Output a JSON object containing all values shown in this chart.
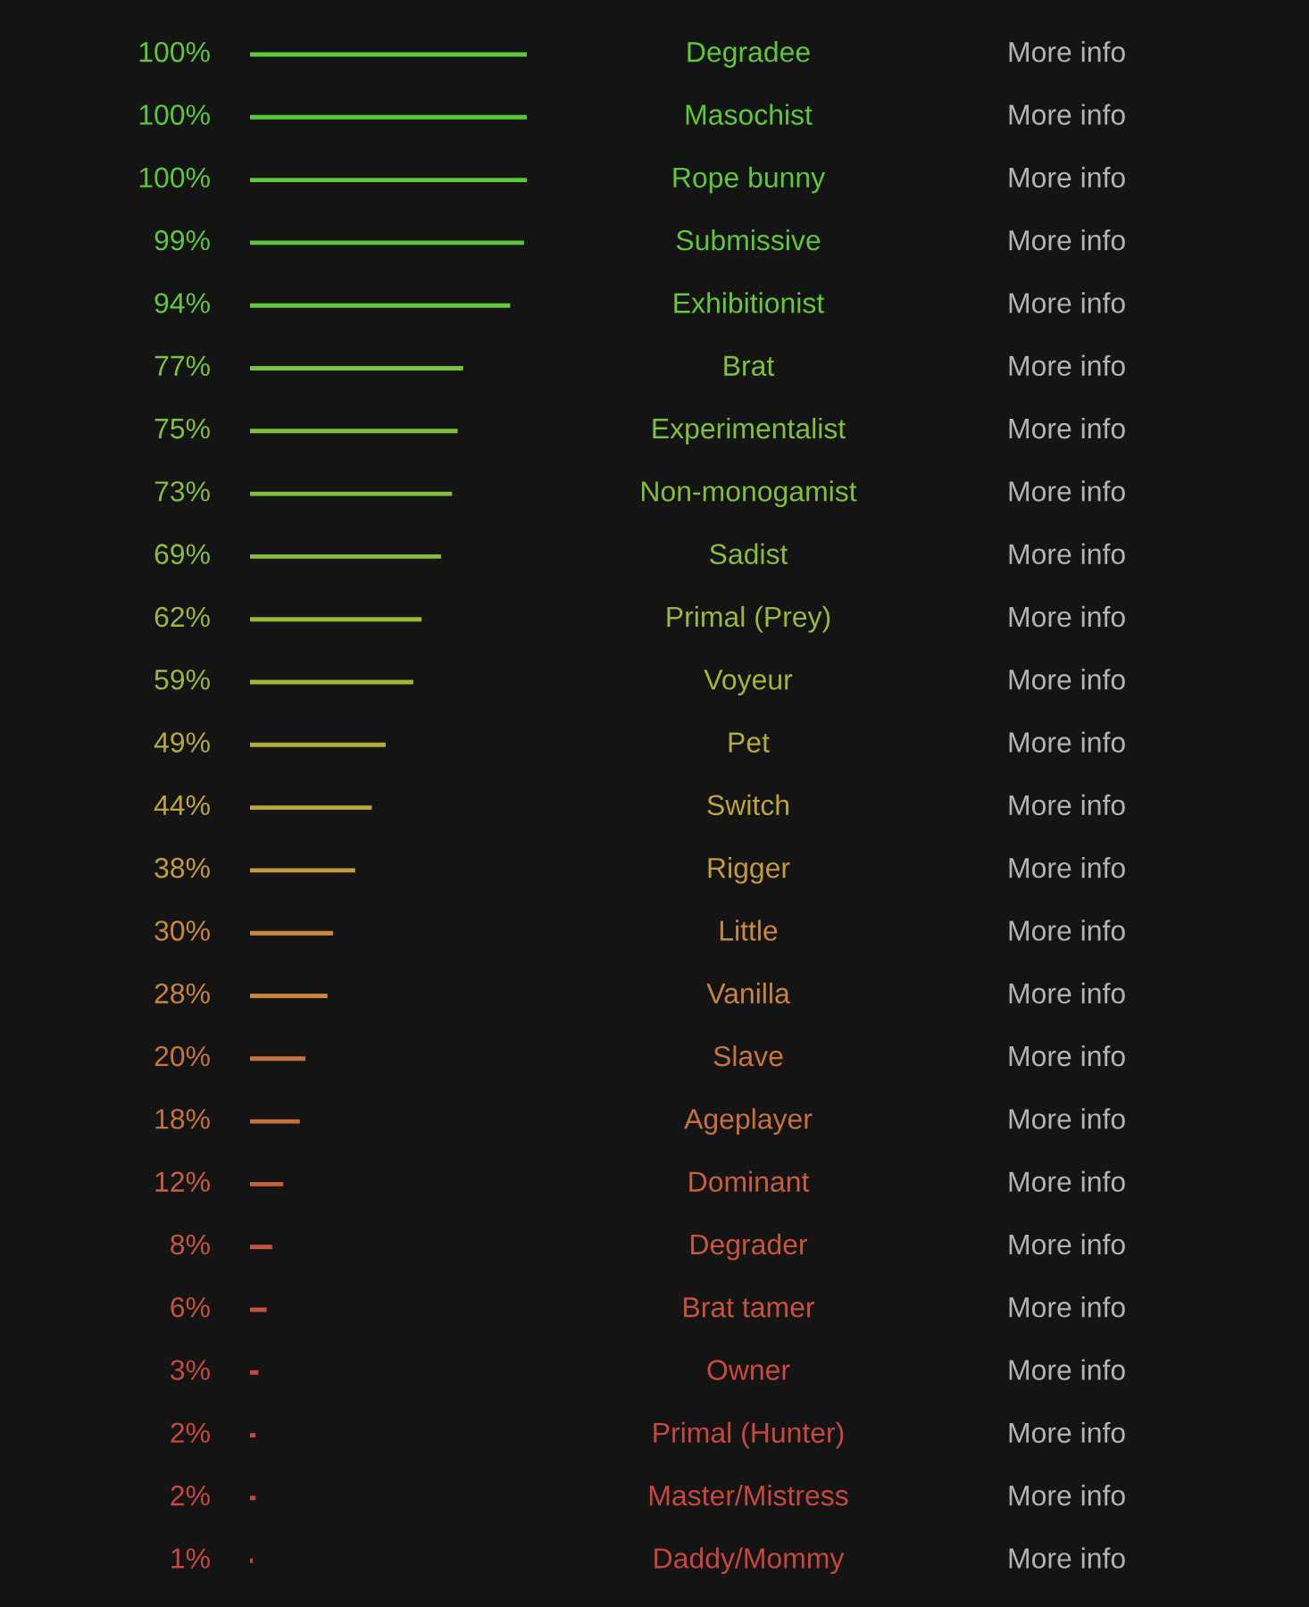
{
  "chart_data": {
    "type": "bar",
    "orientation": "horizontal",
    "categories": [
      "Degradee",
      "Masochist",
      "Rope bunny",
      "Submissive",
      "Exhibitionist",
      "Brat",
      "Experimentalist",
      "Non-monogamist",
      "Sadist",
      "Primal (Prey)",
      "Voyeur",
      "Pet",
      "Switch",
      "Rigger",
      "Little",
      "Vanilla",
      "Slave",
      "Ageplayer",
      "Dominant",
      "Degrader",
      "Brat tamer",
      "Owner",
      "Primal (Hunter)",
      "Master/Mistress",
      "Daddy/Mommy"
    ],
    "values": [
      100,
      100,
      100,
      99,
      94,
      77,
      75,
      73,
      69,
      62,
      59,
      49,
      44,
      38,
      30,
      28,
      20,
      18,
      12,
      8,
      6,
      3,
      2,
      2,
      1
    ],
    "value_labels": [
      "100%",
      "100%",
      "100%",
      "99%",
      "94%",
      "77%",
      "75%",
      "73%",
      "69%",
      "62%",
      "59%",
      "49%",
      "44%",
      "38%",
      "30%",
      "28%",
      "20%",
      "18%",
      "12%",
      "8%",
      "6%",
      "3%",
      "2%",
      "2%",
      "1%"
    ],
    "colors": [
      "#5dc83a",
      "#5dc83a",
      "#5dc83a",
      "#5fc83a",
      "#66c83a",
      "#7dc23a",
      "#80c03a",
      "#84bf3a",
      "#8cbd3a",
      "#9bb93a",
      "#a2b63a",
      "#b5ad3a",
      "#bea63a",
      "#c49c3a",
      "#c88a3e",
      "#c8853e",
      "#c8743e",
      "#c8703e",
      "#c8603e",
      "#c8563e",
      "#c8523e",
      "#c84a3e",
      "#c8483e",
      "#c8483e",
      "#c8463e"
    ],
    "xlim": [
      0,
      100
    ],
    "tick_labels": false,
    "annotations": [
      "More info",
      "More info",
      "More info",
      "More info",
      "More info",
      "More info",
      "More info",
      "More info",
      "More info",
      "More info",
      "More info",
      "More info",
      "More info",
      "More info",
      "More info",
      "More info",
      "More info",
      "More info",
      "More info",
      "More info",
      "More info",
      "More info",
      "More info",
      "More info",
      "More info"
    ]
  }
}
